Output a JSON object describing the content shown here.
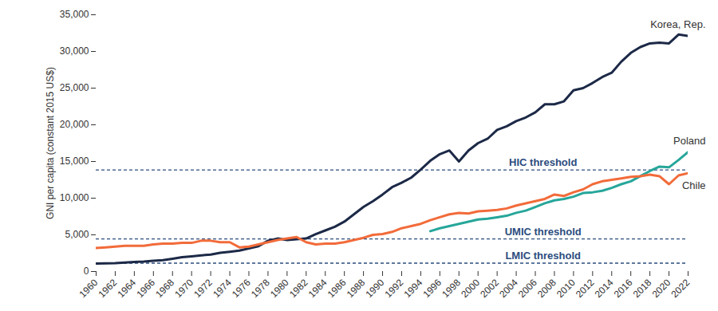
{
  "chart_data": {
    "type": "line",
    "y_label": "GNI per capita (constant 2015 US$)",
    "x": [
      1960,
      1961,
      1962,
      1963,
      1964,
      1965,
      1966,
      1967,
      1968,
      1969,
      1970,
      1971,
      1972,
      1973,
      1974,
      1975,
      1976,
      1977,
      1978,
      1979,
      1980,
      1981,
      1982,
      1983,
      1984,
      1985,
      1986,
      1987,
      1988,
      1989,
      1990,
      1991,
      1992,
      1993,
      1994,
      1995,
      1996,
      1997,
      1998,
      1999,
      2000,
      2001,
      2002,
      2003,
      2004,
      2005,
      2006,
      2007,
      2008,
      2009,
      2010,
      2011,
      2012,
      2013,
      2014,
      2015,
      2016,
      2017,
      2018,
      2019,
      2020,
      2021,
      2022
    ],
    "series": [
      {
        "name": "Korea, Rep.",
        "color": "#1c2947",
        "values": [
          1100,
          1120,
          1150,
          1230,
          1300,
          1350,
          1480,
          1560,
          1750,
          1950,
          2070,
          2200,
          2300,
          2550,
          2700,
          2850,
          3150,
          3450,
          4200,
          4500,
          4300,
          4400,
          4500,
          5100,
          5600,
          6100,
          6800,
          7800,
          8800,
          9600,
          10500,
          11500,
          12100,
          12800,
          13900,
          15100,
          16000,
          16500,
          15000,
          16500,
          17500,
          18100,
          19300,
          19800,
          20500,
          21000,
          21700,
          22800,
          22800,
          23200,
          24700,
          25000,
          25700,
          26500,
          27100,
          28600,
          29800,
          30600,
          31100,
          31200,
          31100,
          32300,
          32100
        ]
      },
      {
        "name": "Poland",
        "color": "#26a69a",
        "values": [
          null,
          null,
          null,
          null,
          null,
          null,
          null,
          null,
          null,
          null,
          null,
          null,
          null,
          null,
          null,
          null,
          null,
          null,
          null,
          null,
          null,
          null,
          null,
          null,
          null,
          null,
          null,
          null,
          null,
          null,
          null,
          null,
          null,
          null,
          null,
          5500,
          5900,
          6200,
          6500,
          6800,
          7100,
          7200,
          7400,
          7600,
          8000,
          8300,
          8800,
          9300,
          9700,
          9900,
          10200,
          10700,
          10800,
          11000,
          11400,
          11900,
          12300,
          13000,
          13700,
          14300,
          14200,
          15200,
          16300
        ]
      },
      {
        "name": "Chile",
        "color": "#f26b3a",
        "values": [
          3200,
          3300,
          3400,
          3500,
          3500,
          3500,
          3700,
          3800,
          3800,
          3900,
          3900,
          4200,
          4200,
          4000,
          4000,
          3300,
          3400,
          3700,
          4000,
          4300,
          4500,
          4700,
          4000,
          3700,
          3800,
          3800,
          4000,
          4300,
          4600,
          5000,
          5100,
          5400,
          5900,
          6200,
          6500,
          7000,
          7400,
          7800,
          8000,
          7900,
          8200,
          8300,
          8400,
          8600,
          9000,
          9300,
          9600,
          9900,
          10500,
          10300,
          10800,
          11200,
          11900,
          12300,
          12500,
          12700,
          12900,
          13000,
          13200,
          13000,
          11900,
          13100,
          13400
        ]
      }
    ],
    "thresholds": [
      {
        "label": "HIC threshold",
        "value": 13850,
        "color": "#2b4c7e",
        "line_style": "dashed"
      },
      {
        "label": "UMIC threshold",
        "value": 4450,
        "color": "#2b4c7e",
        "line_style": "dashed"
      },
      {
        "label": "LMIC threshold",
        "value": 1140,
        "color": "#2b4c7e",
        "line_style": "dashed"
      }
    ],
    "xlim": [
      1960,
      2022
    ],
    "xticks": [
      1960,
      1962,
      1964,
      1966,
      1968,
      1970,
      1972,
      1974,
      1976,
      1978,
      1980,
      1982,
      1984,
      1986,
      1988,
      1990,
      1992,
      1994,
      1996,
      1998,
      2000,
      2002,
      2004,
      2006,
      2008,
      2010,
      2012,
      2014,
      2016,
      2018,
      2020,
      2022
    ],
    "ylim": [
      0,
      35000
    ],
    "yticks": [
      0,
      {
        "value": 5000,
        "label": "5,000"
      },
      {
        "value": 10000,
        "label": "10,000"
      },
      {
        "value": 15000,
        "label": "15,000"
      },
      {
        "value": 20000,
        "label": "20,000"
      },
      {
        "value": 25000,
        "label": "25,000"
      },
      {
        "value": 30000,
        "label": "30,000"
      },
      {
        "value": 35000,
        "label": "35,000"
      }
    ],
    "grid": false
  }
}
